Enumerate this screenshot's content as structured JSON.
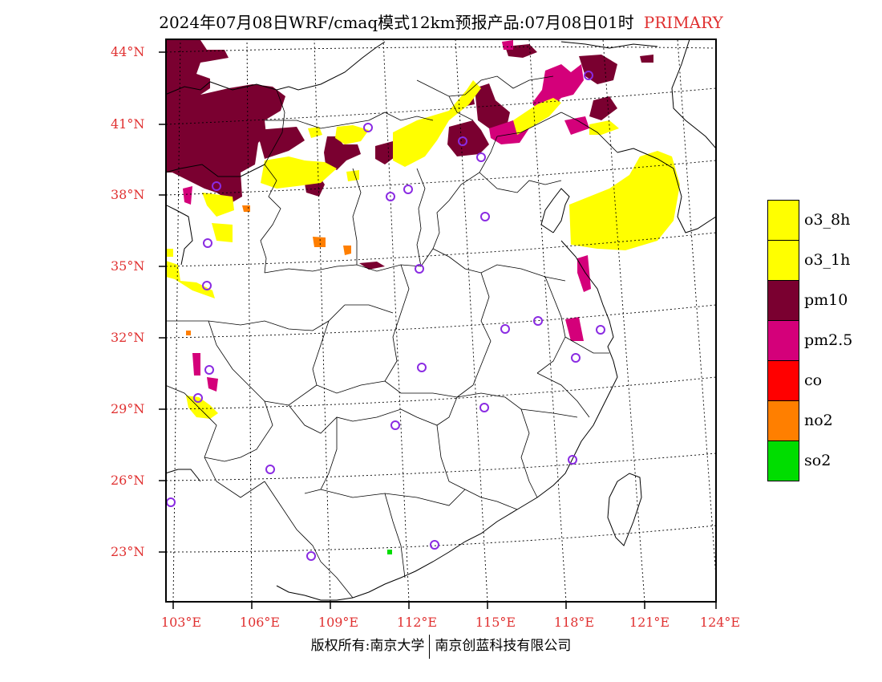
{
  "title": {
    "main": "2024年07月08日WRF/cmaq模式12km预报产品:07月08日01时",
    "tag": "PRIMARY"
  },
  "colors": {
    "o3_8h": "#ffff00",
    "o3_1h": "#ffff00",
    "pm10": "#7a0030",
    "pm2_5": "#d4007a",
    "co": "#ff0000",
    "no2": "#ff7f00",
    "so2": "#00dd00",
    "station": "#8a2be2",
    "label": "#e03030"
  },
  "lat_labels": [
    "44°N",
    "41°N",
    "38°N",
    "35°N",
    "32°N",
    "29°N",
    "26°N",
    "23°N"
  ],
  "lon_labels": [
    "103°E",
    "106°E",
    "109°E",
    "112°E",
    "115°E",
    "118°E",
    "121°E",
    "124°E"
  ],
  "legend": [
    {
      "label": "o3_8h",
      "color": "#ffff00"
    },
    {
      "label": "o3_1h",
      "color": "#ffff00"
    },
    {
      "label": "pm10",
      "color": "#7a0030"
    },
    {
      "label": "pm2.5",
      "color": "#d4007a"
    },
    {
      "label": "co",
      "color": "#ff0000"
    },
    {
      "label": "no2",
      "color": "#ff7f00"
    },
    {
      "label": "so2",
      "color": "#00dd00"
    }
  ],
  "footer": {
    "left": "版权所有:南京大学",
    "right": "南京创蓝科技有限公司"
  }
}
